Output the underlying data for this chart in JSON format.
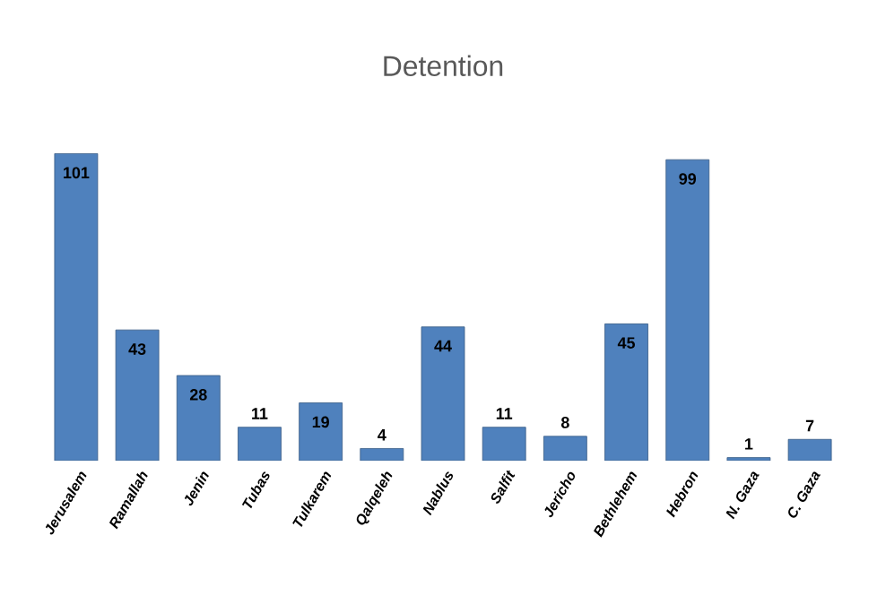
{
  "chart_data": {
    "type": "bar",
    "title": "Detention",
    "categories": [
      "Jerusalem",
      "Ramallah",
      "Jenin",
      "Tubas",
      "Tulkarem",
      "Qalqeleh",
      "Nablus",
      "Salfit",
      "Jericho",
      "Bethlehem",
      "Hebron",
      "N. Gaza",
      "C. Gaza"
    ],
    "values": [
      101,
      43,
      28,
      11,
      19,
      4,
      44,
      11,
      8,
      45,
      99,
      1,
      7
    ],
    "color": "#4f81bd",
    "data_labels": true
  }
}
